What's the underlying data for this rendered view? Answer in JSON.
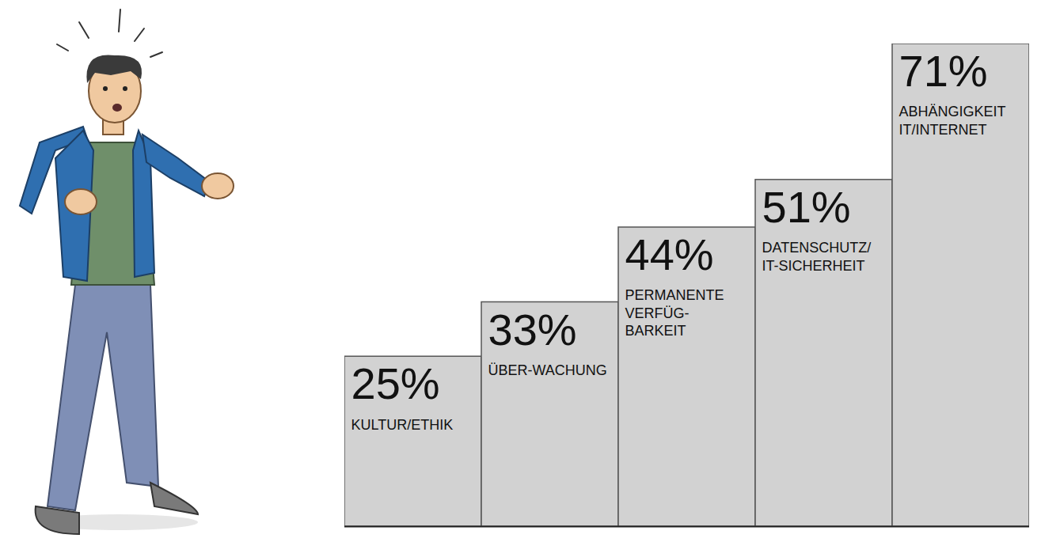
{
  "chart_data": {
    "type": "bar",
    "categories": [
      "KULTUR/ETHIK",
      "ÜBER-WACHUNG",
      "PERMANENTE VERFÜG-BARKEIT",
      "DATENSCHUTZ/IT-SICHERHEIT",
      "ABHÄNGIGKEIT IT/INTERNET"
    ],
    "values": [
      25,
      33,
      44,
      51,
      71
    ],
    "value_labels": [
      "25%",
      "33%",
      "44%",
      "51%",
      "71%"
    ],
    "color": "#d2d2d2",
    "ylim": [
      0,
      71
    ],
    "data_labels": true,
    "tick_labels": false
  }
}
